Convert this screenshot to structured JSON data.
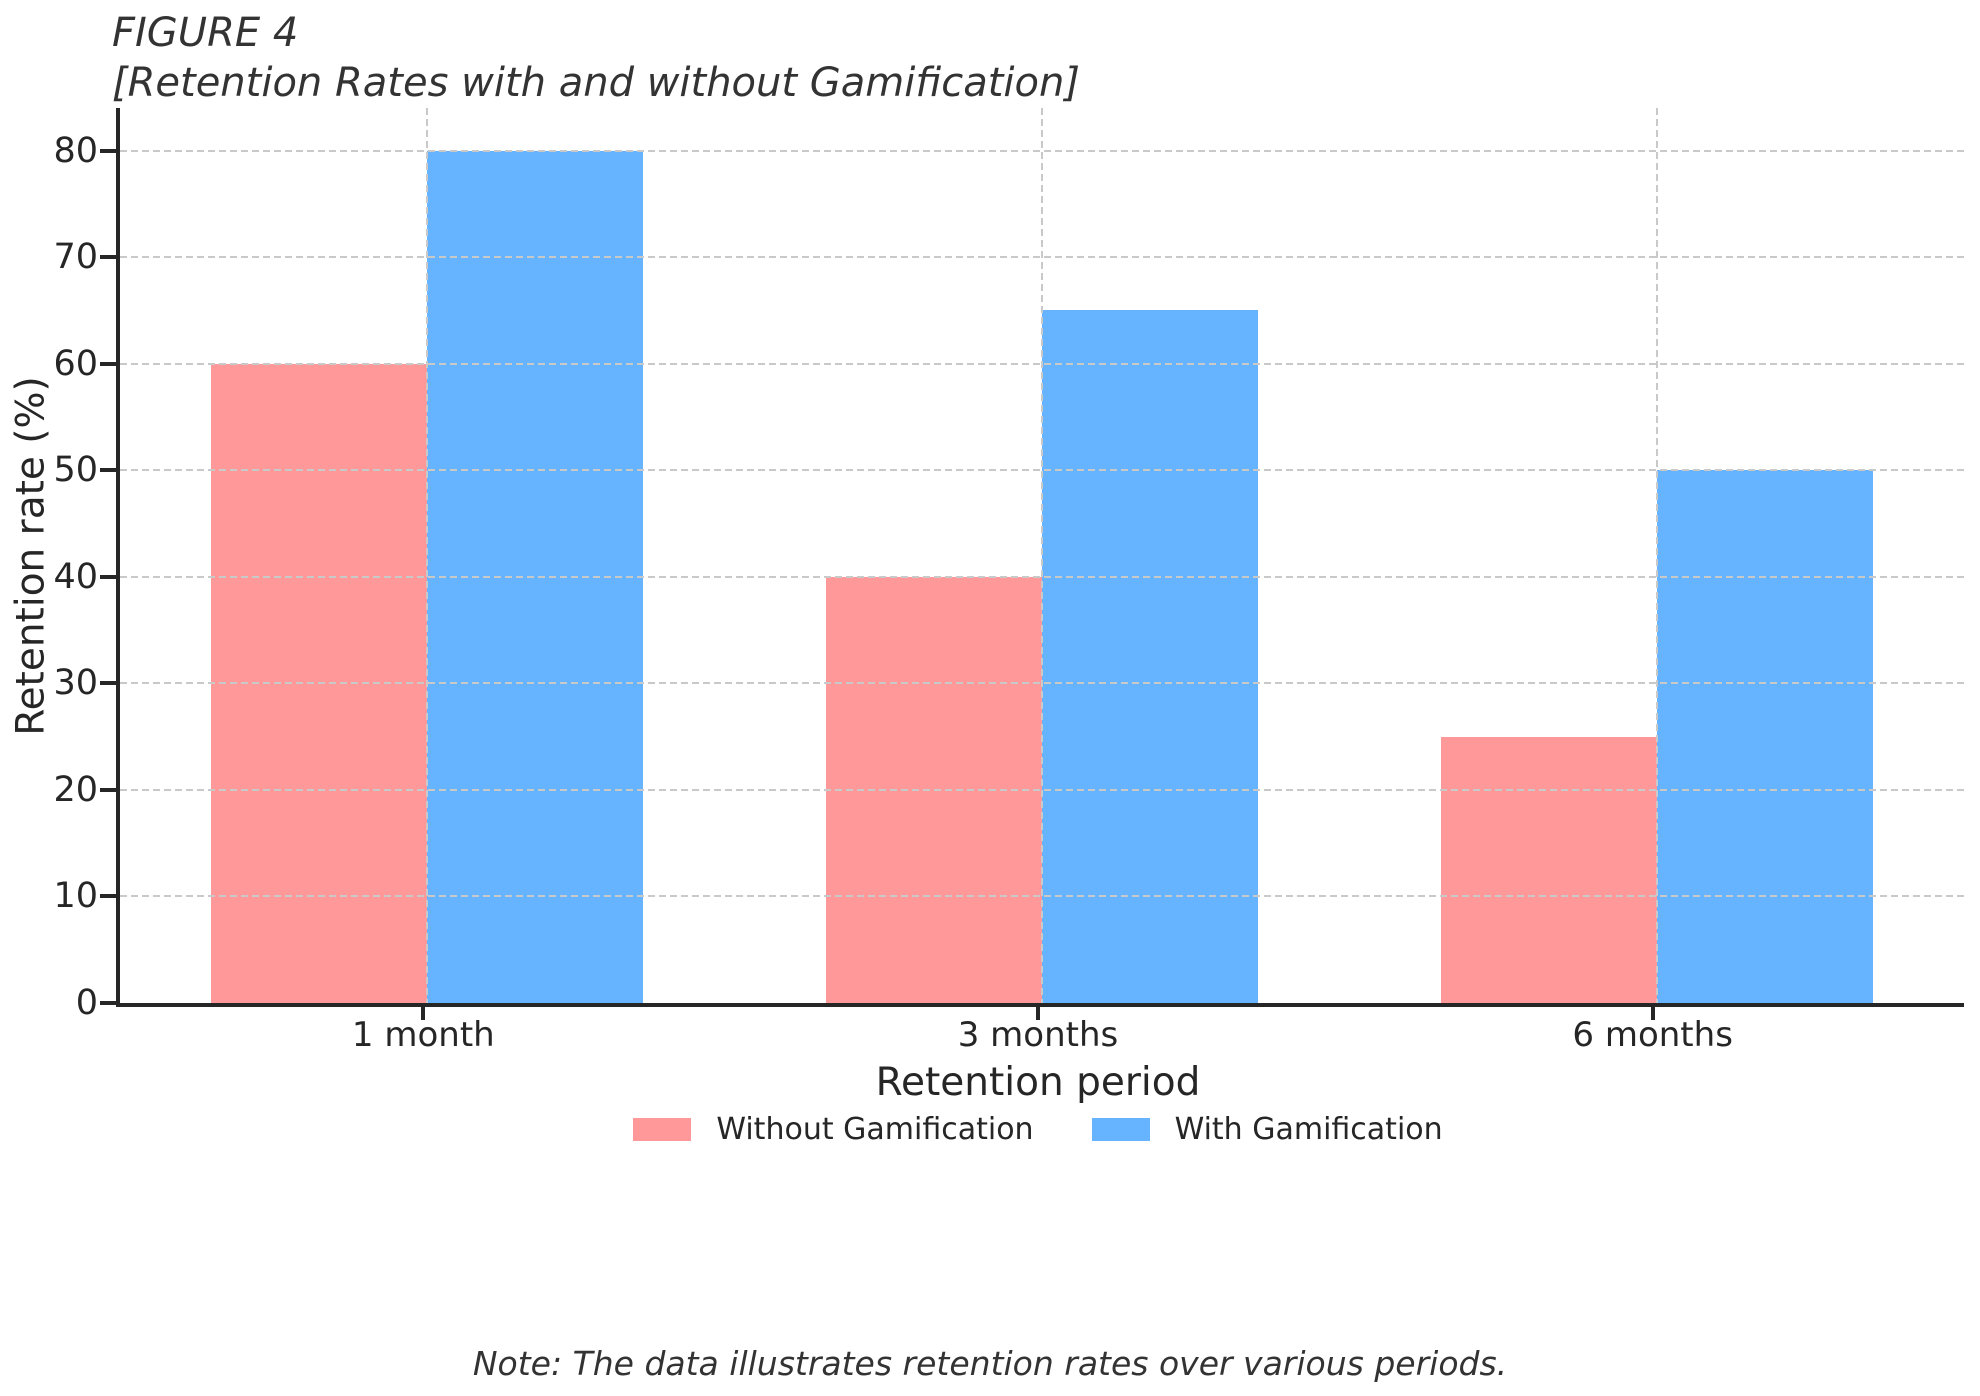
{
  "figure": {
    "label": "FIGURE 4",
    "caption": "[Retention Rates with and without Gamification]",
    "note": "Note: The data illustrates retention rates over various periods."
  },
  "chart_data": {
    "type": "bar",
    "title": "FIGURE 4 [Retention Rates with and without Gamification]",
    "categories": [
      "1 month",
      "3 months",
      "6 months"
    ],
    "series": [
      {
        "name": "Without Gamification",
        "color": "#ff9999",
        "values": [
          60,
          40,
          25
        ]
      },
      {
        "name": "With Gamification",
        "color": "#66b3ff",
        "values": [
          80,
          65,
          50
        ]
      }
    ],
    "xlabel": "Retention period",
    "ylabel": "Retention rate (%)",
    "ylim": [
      0,
      84
    ],
    "yticks": [
      0,
      10,
      20,
      30,
      40,
      50,
      60,
      70,
      80
    ],
    "grid": true,
    "gridline_color": "#c9c9c9",
    "axis_color": "#262626",
    "legend_position": "bottom"
  }
}
